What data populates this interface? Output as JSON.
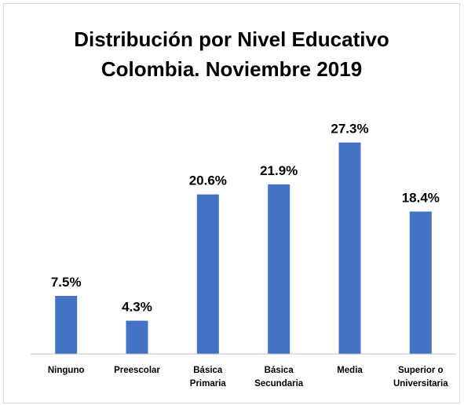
{
  "chart_data": {
    "type": "bar",
    "title": "Distribución por Nivel Educativo",
    "subtitle": "Colombia. Noviembre 2019",
    "categories": [
      [
        "Ninguno"
      ],
      [
        "Preescolar"
      ],
      [
        "Básica",
        "Primaria"
      ],
      [
        "Básica",
        "Secundaria"
      ],
      [
        "Media"
      ],
      [
        "Superior o",
        "Universitaria"
      ]
    ],
    "values": [
      7.5,
      4.3,
      20.6,
      21.9,
      27.3,
      18.4
    ],
    "data_labels": [
      "7.5%",
      "4.3%",
      "20.6%",
      "21.9%",
      "27.3%",
      "18.4%"
    ],
    "xlabel": "",
    "ylabel": "",
    "ylim": [
      0,
      30
    ],
    "grid": false,
    "legend": "none",
    "bar_color": "#4472c4"
  }
}
